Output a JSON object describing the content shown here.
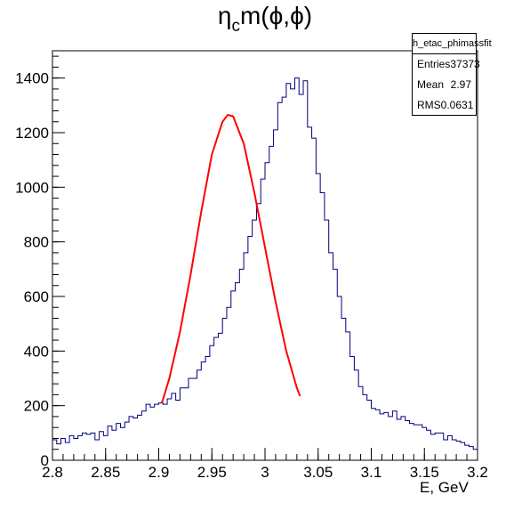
{
  "title": {
    "main": "η",
    "sub": "c",
    "rest": "m(ϕ,ϕ)"
  },
  "stats_box": {
    "name": "h_etac_phimassfit",
    "rows": [
      {
        "label": "Entries",
        "value": "37373"
      },
      {
        "label": "Mean",
        "value": "2.97"
      },
      {
        "label": "RMS",
        "value": "0.0631"
      }
    ]
  },
  "colors": {
    "histogram": "#000080",
    "fit": "#ff0000",
    "axis": "#000000"
  },
  "chart_data": {
    "type": "line",
    "title": "ηc m(ϕ,ϕ)",
    "xlabel": "E, GeV",
    "ylabel": "",
    "xlim": [
      2.8,
      3.2
    ],
    "ylim": [
      0,
      1500
    ],
    "xticks": [
      "2.8",
      "2.85",
      "2.9",
      "2.95",
      "3",
      "3.05",
      "3.1",
      "3.15",
      "3.2"
    ],
    "yticks": [
      "0",
      "200",
      "400",
      "600",
      "800",
      "1000",
      "1200",
      "1400"
    ],
    "grid": false,
    "series": [
      {
        "style": "histogram-step",
        "bin_width": 0.004,
        "x_start": 2.8,
        "values": [
          75,
          60,
          80,
          65,
          90,
          80,
          90,
          100,
          95,
          100,
          75,
          105,
          90,
          125,
          110,
          135,
          120,
          140,
          160,
          155,
          165,
          180,
          205,
          195,
          205,
          210,
          205,
          225,
          245,
          220,
          265,
          265,
          300,
          300,
          330,
          360,
          380,
          420,
          450,
          465,
          520,
          560,
          620,
          650,
          700,
          760,
          820,
          880,
          940,
          1030,
          1090,
          1150,
          1210,
          1310,
          1330,
          1380,
          1360,
          1400,
          1340,
          1390,
          1220,
          1180,
          1050,
          980,
          880,
          760,
          700,
          600,
          520,
          470,
          380,
          330,
          270,
          240,
          220,
          190,
          185,
          170,
          175,
          160,
          180,
          150,
          160,
          145,
          135,
          130,
          130,
          120,
          110,
          95,
          100,
          100,
          75,
          90,
          75,
          70,
          65,
          55,
          50,
          40
        ]
      },
      {
        "style": "fit-curve",
        "x": [
          2.903,
          2.91,
          2.92,
          2.93,
          2.94,
          2.95,
          2.96,
          2.965,
          2.97,
          2.98,
          2.99,
          3.0,
          3.01,
          3.02,
          3.03,
          3.033
        ],
        "y": [
          210,
          300,
          470,
          680,
          910,
          1120,
          1240,
          1265,
          1260,
          1160,
          980,
          780,
          580,
          400,
          265,
          235
        ]
      }
    ]
  }
}
